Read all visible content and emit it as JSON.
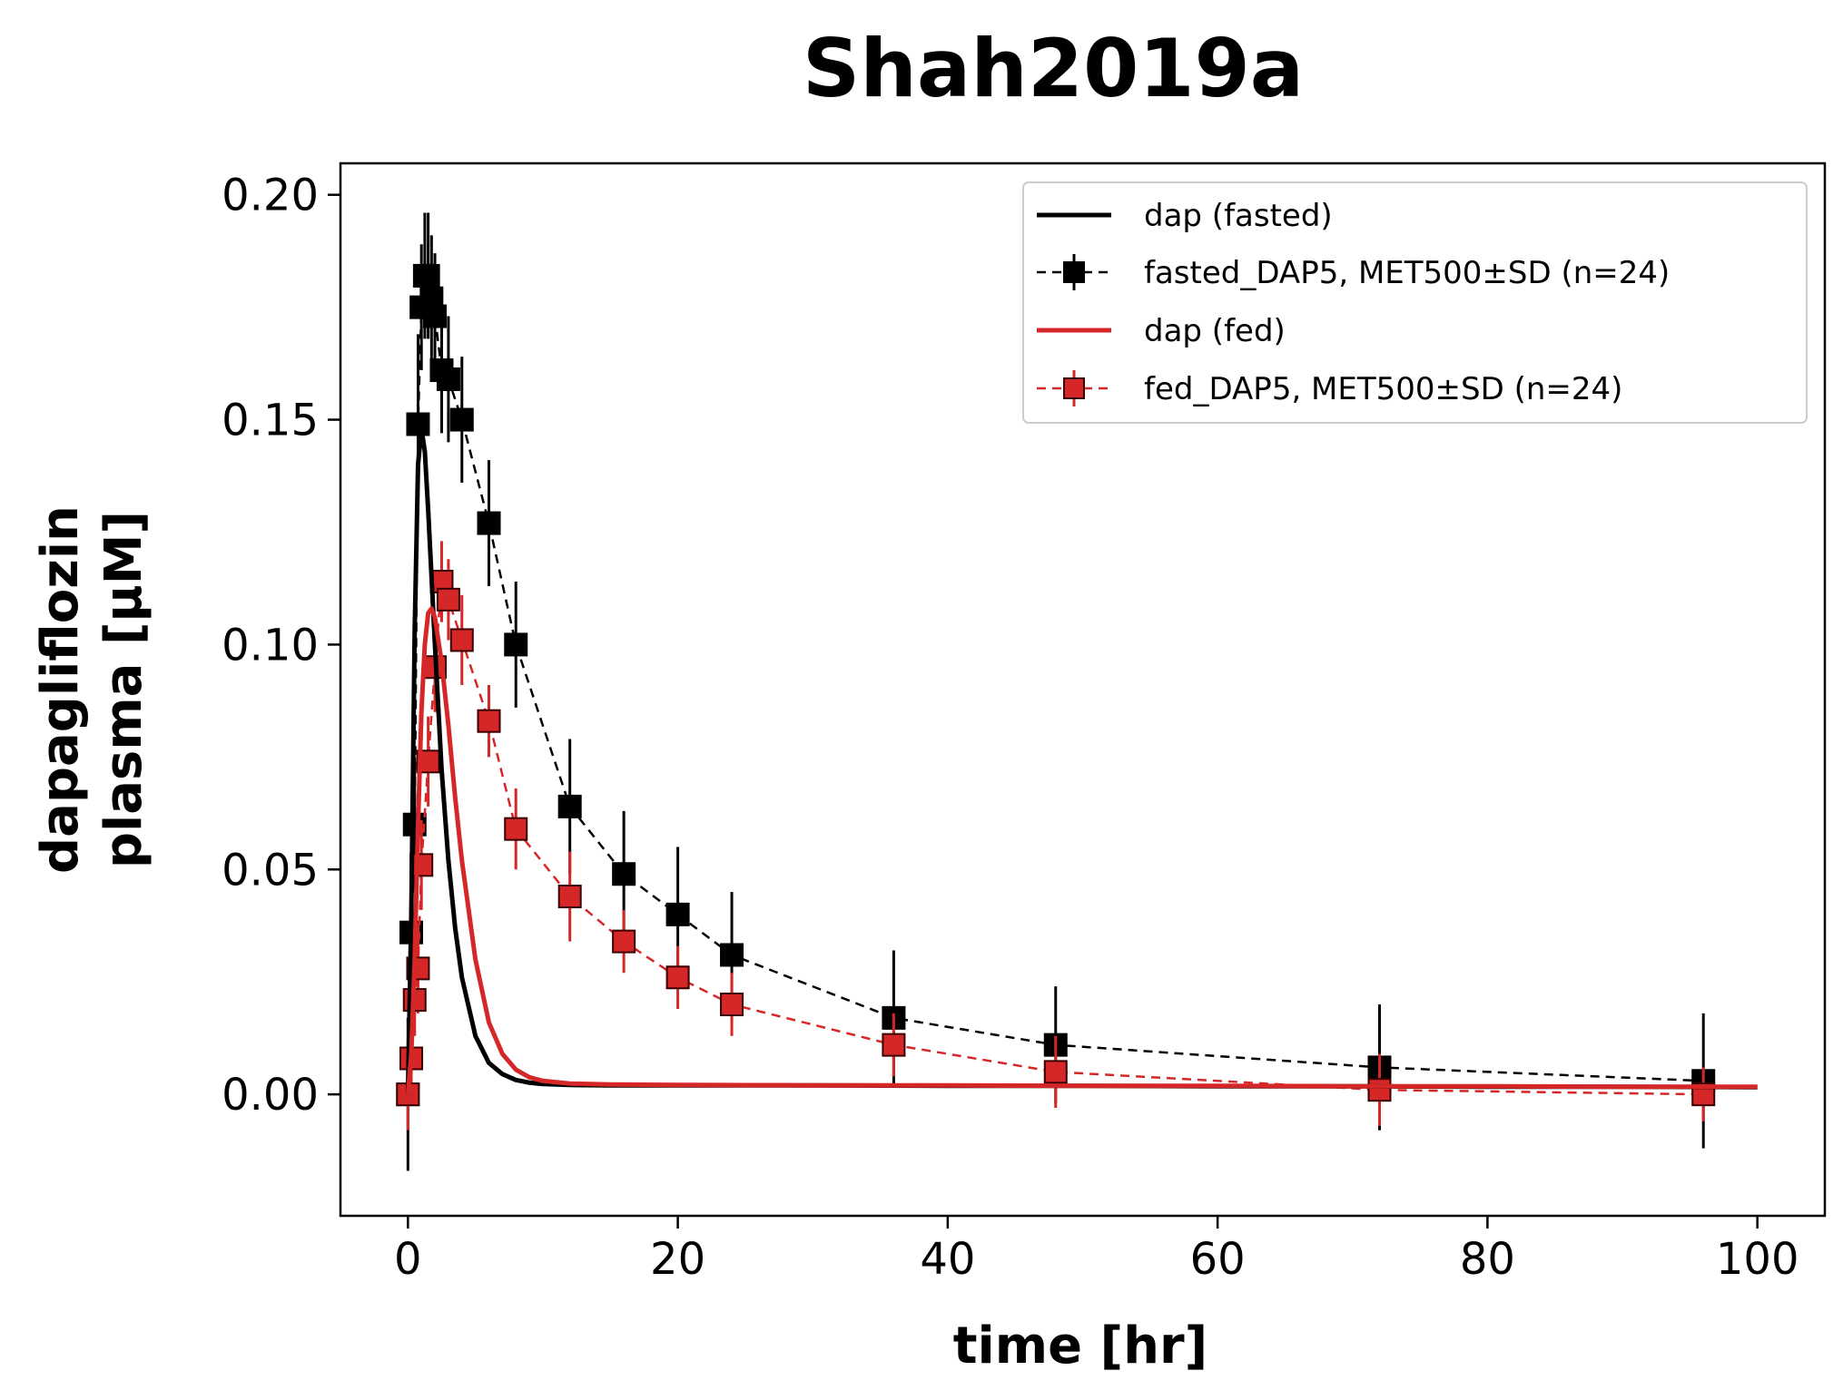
{
  "chart_data": {
    "type": "line",
    "title": "Shah2019a",
    "xlabel": "time [hr]",
    "ylabel_line1": "dapagliflozin",
    "ylabel_line2": "plasma [μM]",
    "xlim": [
      -5,
      105
    ],
    "ylim": [
      -0.027,
      0.207
    ],
    "xticks": [
      0,
      20,
      40,
      60,
      80,
      100
    ],
    "xtick_labels": [
      "0",
      "20",
      "40",
      "60",
      "80",
      "100"
    ],
    "yticks": [
      0.0,
      0.05,
      0.1,
      0.15,
      0.2
    ],
    "ytick_labels": [
      "0.00",
      "0.05",
      "0.10",
      "0.15",
      "0.20"
    ],
    "grid": false,
    "legend_position": "top-right",
    "colors": {
      "fasted": "#000000",
      "fed": "#d62728"
    },
    "series": [
      {
        "name": "dap (fasted)",
        "kind": "simulation",
        "color": "#000000",
        "x": [
          0,
          0.25,
          0.5,
          0.75,
          1.0,
          1.25,
          1.5,
          2.0,
          2.5,
          3.0,
          3.5,
          4.0,
          5.0,
          6.0,
          7.0,
          8.0,
          9.0,
          10.0,
          12.0,
          15.0,
          20.0,
          30.0,
          40.0,
          50.0,
          60.0,
          70.0,
          80.0,
          90.0,
          100.0
        ],
        "y": [
          0.0,
          0.04,
          0.103,
          0.14,
          0.148,
          0.143,
          0.13,
          0.1,
          0.072,
          0.052,
          0.037,
          0.026,
          0.013,
          0.007,
          0.0045,
          0.0032,
          0.0026,
          0.0023,
          0.0021,
          0.002,
          0.002,
          0.002,
          0.0019,
          0.0019,
          0.0018,
          0.0018,
          0.0017,
          0.0017,
          0.0016
        ]
      },
      {
        "name": "fasted_DAP5, MET500±SD (n=24)",
        "kind": "data",
        "color": "#000000",
        "x": [
          0,
          0.25,
          0.5,
          0.75,
          1.0,
          1.25,
          1.5,
          1.75,
          2.0,
          2.5,
          3.0,
          4.0,
          6.0,
          8.0,
          12.0,
          16.0,
          20.0,
          24.0,
          36.0,
          48.0,
          72.0,
          96.0
        ],
        "y": [
          0.0,
          0.036,
          0.06,
          0.149,
          0.175,
          0.182,
          0.182,
          0.177,
          0.173,
          0.161,
          0.159,
          0.15,
          0.127,
          0.1,
          0.064,
          0.049,
          0.04,
          0.031,
          0.017,
          0.011,
          0.006,
          0.003
        ],
        "sd": [
          0.017,
          0.012,
          0.015,
          0.02,
          0.014,
          0.014,
          0.014,
          0.014,
          0.014,
          0.014,
          0.014,
          0.014,
          0.014,
          0.014,
          0.015,
          0.014,
          0.015,
          0.014,
          0.015,
          0.013,
          0.014,
          0.015
        ]
      },
      {
        "name": "dap (fed)",
        "kind": "simulation",
        "color": "#d62728",
        "x": [
          0,
          0.25,
          0.5,
          0.75,
          1.0,
          1.25,
          1.5,
          1.75,
          2.0,
          2.5,
          3.0,
          3.5,
          4.0,
          5.0,
          6.0,
          7.0,
          8.0,
          9.0,
          10.0,
          12.0,
          15.0,
          20.0,
          30.0,
          40.0,
          50.0,
          60.0,
          70.0,
          80.0,
          90.0,
          100.0
        ],
        "y": [
          0.0,
          0.009,
          0.03,
          0.06,
          0.085,
          0.1,
          0.107,
          0.108,
          0.106,
          0.096,
          0.082,
          0.066,
          0.052,
          0.03,
          0.016,
          0.009,
          0.0055,
          0.0038,
          0.003,
          0.0024,
          0.0022,
          0.0021,
          0.002,
          0.002,
          0.0019,
          0.0019,
          0.0018,
          0.0018,
          0.0017,
          0.0017
        ]
      },
      {
        "name": "fed_DAP5, MET500±SD (n=24)",
        "kind": "data",
        "color": "#d62728",
        "x": [
          0,
          0.25,
          0.5,
          0.75,
          1.0,
          1.5,
          2.0,
          2.5,
          3.0,
          4.0,
          6.0,
          8.0,
          12.0,
          16.0,
          20.0,
          24.0,
          36.0,
          48.0,
          72.0,
          96.0
        ],
        "y": [
          0.0,
          0.008,
          0.021,
          0.028,
          0.051,
          0.074,
          0.095,
          0.114,
          0.11,
          0.101,
          0.083,
          0.059,
          0.044,
          0.034,
          0.026,
          0.02,
          0.011,
          0.005,
          0.001,
          0.0
        ],
        "sd": [
          0.008,
          0.008,
          0.008,
          0.01,
          0.01,
          0.01,
          0.01,
          0.009,
          0.009,
          0.01,
          0.008,
          0.009,
          0.01,
          0.007,
          0.007,
          0.007,
          0.007,
          0.008,
          0.008,
          0.006
        ]
      }
    ]
  }
}
